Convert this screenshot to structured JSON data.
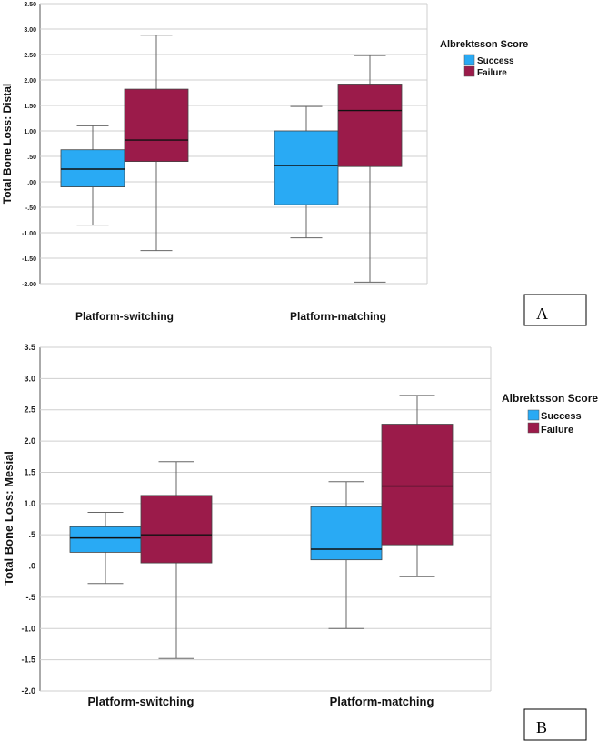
{
  "colors": {
    "success": "#29aaf4",
    "failure": "#9b1b4a",
    "grid": "#cfcfcf",
    "whisker": "#666666",
    "median": "#111111"
  },
  "chart_data": [
    {
      "type": "boxplot",
      "panel_label": "A",
      "ylabel": "Total Bone Loss: Distal",
      "ylim": [
        -2.0,
        3.5
      ],
      "yticks": [
        -2.0,
        -1.5,
        -1.0,
        -0.5,
        0.0,
        0.5,
        1.0,
        1.5,
        2.0,
        2.5,
        3.0,
        3.5
      ],
      "ytick_labels": [
        "-2.00",
        "-1.50",
        "-1.00",
        "-.50",
        ".00",
        ".50",
        "1.00",
        "1.50",
        "2.00",
        "2.50",
        "3.00",
        "3.50"
      ],
      "categories": [
        "Platform-switching",
        "Platform-matching"
      ],
      "legend": {
        "title": "Albrektsson Score",
        "entries": [
          "Success",
          "Failure"
        ]
      },
      "series": [
        {
          "name": "Success",
          "boxes": [
            {
              "min": -0.85,
              "q1": -0.1,
              "median": 0.25,
              "q3": 0.63,
              "max": 1.1
            },
            {
              "min": -1.1,
              "q1": -0.45,
              "median": 0.32,
              "q3": 1.0,
              "max": 1.48
            }
          ]
        },
        {
          "name": "Failure",
          "boxes": [
            {
              "min": -1.35,
              "q1": 0.4,
              "median": 0.82,
              "q3": 1.82,
              "max": 2.88
            },
            {
              "min": -1.97,
              "q1": 0.3,
              "median": 1.4,
              "q3": 1.92,
              "max": 2.48
            }
          ]
        }
      ]
    },
    {
      "type": "boxplot",
      "panel_label": "B",
      "ylabel": "Total Bone Loss: Mesial",
      "ylim": [
        -2.0,
        3.5
      ],
      "yticks": [
        -2.0,
        -1.5,
        -1.0,
        -0.5,
        0.0,
        0.5,
        1.0,
        1.5,
        2.0,
        2.5,
        3.0,
        3.5
      ],
      "ytick_labels": [
        "-2.0",
        "-1.5",
        "-1.0",
        "-.5",
        ".0",
        ".5",
        "1.0",
        "1.5",
        "2.0",
        "2.5",
        "3.0",
        "3.5"
      ],
      "categories": [
        "Platform-switching",
        "Platform-matching"
      ],
      "legend": {
        "title": "Albrektsson Score",
        "entries": [
          "Success",
          "Failure"
        ]
      },
      "series": [
        {
          "name": "Success",
          "boxes": [
            {
              "min": -0.28,
              "q1": 0.22,
              "median": 0.45,
              "q3": 0.63,
              "max": 0.86
            },
            {
              "min": -1.0,
              "q1": 0.1,
              "median": 0.27,
              "q3": 0.95,
              "max": 1.35
            }
          ]
        },
        {
          "name": "Failure",
          "boxes": [
            {
              "min": -1.48,
              "q1": 0.05,
              "median": 0.5,
              "q3": 1.13,
              "max": 1.67
            },
            {
              "min": -0.17,
              "q1": 0.34,
              "median": 1.28,
              "q3": 2.27,
              "max": 2.73
            }
          ]
        }
      ]
    }
  ]
}
